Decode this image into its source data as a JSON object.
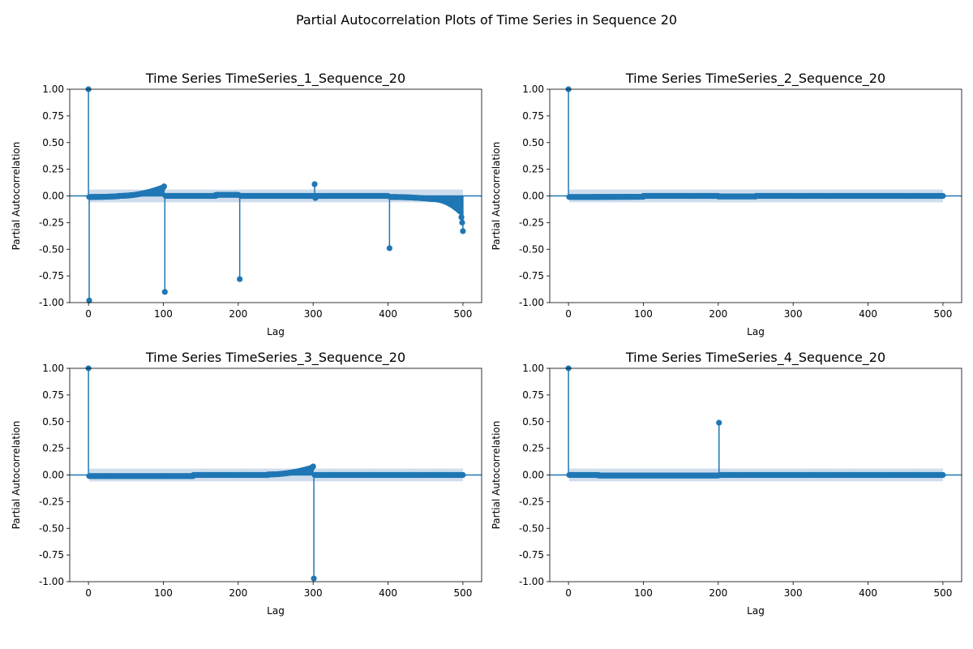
{
  "figure": {
    "suptitle": "Partial Autocorrelation Plots of Time Series in Sequence 20"
  },
  "colors": {
    "stem": "#1f77b4",
    "confidence_band": "#c5d7ea",
    "zero_line": "#1f77b4",
    "axis": "#000000"
  },
  "chart_data": [
    {
      "type": "stem",
      "title": "Time Series TimeSeries_1_Sequence_20",
      "xlabel": "Lag",
      "ylabel": "Partial Autocorrelation",
      "xlim": [
        -25,
        525
      ],
      "ylim": [
        -1.0,
        1.0
      ],
      "x_ticks": [
        0,
        100,
        200,
        300,
        400,
        500
      ],
      "y_ticks": [
        1.0,
        0.75,
        0.5,
        0.25,
        0.0,
        -0.25,
        -0.5,
        -0.75,
        -1.0
      ],
      "max_lag": 500,
      "confidence_band": 0.06,
      "baseline_segments": [
        [
          1,
          40,
          -0.01,
          -0.003
        ],
        [
          40,
          100,
          0.0,
          0.08
        ],
        [
          103,
          170,
          0.0,
          0.0
        ],
        [
          170,
          200,
          0.01,
          0.01
        ],
        [
          203,
          300,
          0.0,
          0.0
        ],
        [
          303,
          400,
          0.0,
          0.0
        ],
        [
          403,
          460,
          -0.01,
          -0.03
        ],
        [
          460,
          497,
          -0.03,
          -0.15
        ]
      ],
      "spikes": [
        {
          "lag": 0,
          "value": 1.0
        },
        {
          "lag": 1,
          "value": -0.98
        },
        {
          "lag": 101,
          "value": 0.09
        },
        {
          "lag": 102,
          "value": -0.9
        },
        {
          "lag": 202,
          "value": -0.78
        },
        {
          "lag": 302,
          "value": 0.11
        },
        {
          "lag": 303,
          "value": -0.02
        },
        {
          "lag": 402,
          "value": -0.49
        },
        {
          "lag": 498,
          "value": -0.2
        },
        {
          "lag": 499,
          "value": -0.25
        },
        {
          "lag": 500,
          "value": -0.33
        }
      ]
    },
    {
      "type": "stem",
      "title": "Time Series TimeSeries_2_Sequence_20",
      "xlabel": "Lag",
      "ylabel": "Partial Autocorrelation",
      "xlim": [
        -25,
        525
      ],
      "ylim": [
        -1.0,
        1.0
      ],
      "x_ticks": [
        0,
        100,
        200,
        300,
        400,
        500
      ],
      "y_ticks": [
        1.0,
        0.75,
        0.5,
        0.25,
        0.0,
        -0.25,
        -0.5,
        -0.75,
        -1.0
      ],
      "max_lag": 500,
      "confidence_band": 0.06,
      "baseline_segments": [
        [
          1,
          100,
          -0.01,
          -0.008
        ],
        [
          100,
          200,
          0.0,
          0.0
        ],
        [
          200,
          250,
          -0.005,
          -0.005
        ],
        [
          250,
          500,
          0.0,
          0.0
        ]
      ],
      "spikes": [
        {
          "lag": 0,
          "value": 1.0
        }
      ]
    },
    {
      "type": "stem",
      "title": "Time Series TimeSeries_3_Sequence_20",
      "xlabel": "Lag",
      "ylabel": "Partial Autocorrelation",
      "xlim": [
        -25,
        525
      ],
      "ylim": [
        -1.0,
        1.0
      ],
      "x_ticks": [
        0,
        100,
        200,
        300,
        400,
        500
      ],
      "y_ticks": [
        1.0,
        0.75,
        0.5,
        0.25,
        0.0,
        -0.25,
        -0.5,
        -0.75,
        -1.0
      ],
      "max_lag": 500,
      "confidence_band": 0.06,
      "baseline_segments": [
        [
          1,
          140,
          -0.01,
          -0.01
        ],
        [
          140,
          240,
          0.0,
          0.0
        ],
        [
          240,
          299,
          0.005,
          0.07
        ],
        [
          302,
          500,
          0.0,
          0.0
        ]
      ],
      "spikes": [
        {
          "lag": 0,
          "value": 1.0
        },
        {
          "lag": 300,
          "value": 0.08
        },
        {
          "lag": 301,
          "value": -0.97
        }
      ]
    },
    {
      "type": "stem",
      "title": "Time Series TimeSeries_4_Sequence_20",
      "xlabel": "Lag",
      "ylabel": "Partial Autocorrelation",
      "xlim": [
        -25,
        525
      ],
      "ylim": [
        -1.0,
        1.0
      ],
      "x_ticks": [
        0,
        100,
        200,
        300,
        400,
        500
      ],
      "y_ticks": [
        1.0,
        0.75,
        0.5,
        0.25,
        0.0,
        -0.25,
        -0.5,
        -0.75,
        -1.0
      ],
      "max_lag": 500,
      "confidence_band": 0.06,
      "baseline_segments": [
        [
          1,
          40,
          0.0,
          0.0
        ],
        [
          40,
          200,
          -0.005,
          -0.005
        ],
        [
          202,
          500,
          0.0,
          0.0
        ]
      ],
      "spikes": [
        {
          "lag": 0,
          "value": 1.0
        },
        {
          "lag": 201,
          "value": 0.49
        }
      ]
    }
  ]
}
